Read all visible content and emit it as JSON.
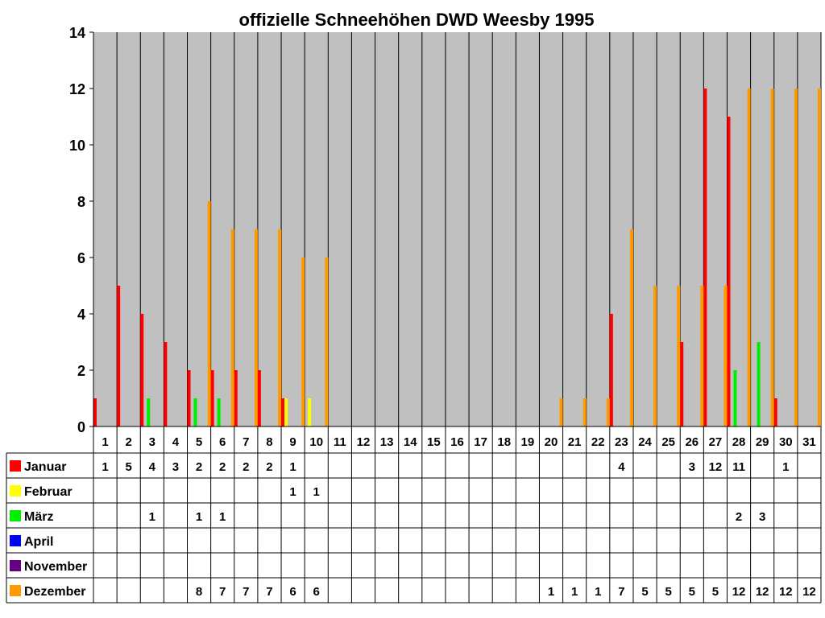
{
  "chart_data": {
    "type": "bar",
    "title": "offizielle Schneehöhen DWD Weesby 1995",
    "xlabel": "",
    "ylabel": "",
    "ylim": [
      0,
      14
    ],
    "yticks": [
      0,
      2,
      4,
      6,
      8,
      10,
      12,
      14
    ],
    "grid": true,
    "legend": "table-left",
    "categories": [
      "1",
      "2",
      "3",
      "4",
      "5",
      "6",
      "7",
      "8",
      "9",
      "10",
      "11",
      "12",
      "13",
      "14",
      "15",
      "16",
      "17",
      "18",
      "19",
      "20",
      "21",
      "22",
      "23",
      "24",
      "25",
      "26",
      "27",
      "28",
      "29",
      "30",
      "31"
    ],
    "series": [
      {
        "name": "Januar",
        "color": "#ff0000",
        "values": [
          1,
          5,
          4,
          3,
          2,
          2,
          2,
          2,
          1,
          null,
          null,
          null,
          null,
          null,
          null,
          null,
          null,
          null,
          null,
          null,
          null,
          null,
          4,
          null,
          null,
          3,
          12,
          11,
          null,
          1,
          null
        ]
      },
      {
        "name": "Februar",
        "color": "#ffff00",
        "values": [
          null,
          null,
          null,
          null,
          null,
          null,
          null,
          null,
          1,
          1,
          null,
          null,
          null,
          null,
          null,
          null,
          null,
          null,
          null,
          null,
          null,
          null,
          null,
          null,
          null,
          null,
          null,
          null,
          null,
          null,
          null
        ]
      },
      {
        "name": "März",
        "color": "#00ee00",
        "values": [
          null,
          null,
          1,
          null,
          1,
          1,
          null,
          null,
          null,
          null,
          null,
          null,
          null,
          null,
          null,
          null,
          null,
          null,
          null,
          null,
          null,
          null,
          null,
          null,
          null,
          null,
          null,
          2,
          3,
          null,
          null
        ]
      },
      {
        "name": "April",
        "color": "#0000ff",
        "values": [
          null,
          null,
          null,
          null,
          null,
          null,
          null,
          null,
          null,
          null,
          null,
          null,
          null,
          null,
          null,
          null,
          null,
          null,
          null,
          null,
          null,
          null,
          null,
          null,
          null,
          null,
          null,
          null,
          null,
          null,
          null
        ]
      },
      {
        "name": "November",
        "color": "#660080",
        "values": [
          null,
          null,
          null,
          null,
          null,
          null,
          null,
          null,
          null,
          null,
          null,
          null,
          null,
          null,
          null,
          null,
          null,
          null,
          null,
          null,
          null,
          null,
          null,
          null,
          null,
          null,
          null,
          null,
          null,
          null,
          null
        ]
      },
      {
        "name": "Dezember",
        "color": "#ff9900",
        "values": [
          null,
          null,
          null,
          null,
          8,
          7,
          7,
          7,
          6,
          6,
          null,
          null,
          null,
          null,
          null,
          null,
          null,
          null,
          null,
          1,
          1,
          1,
          7,
          5,
          5,
          5,
          5,
          12,
          12,
          12,
          12
        ]
      }
    ]
  }
}
